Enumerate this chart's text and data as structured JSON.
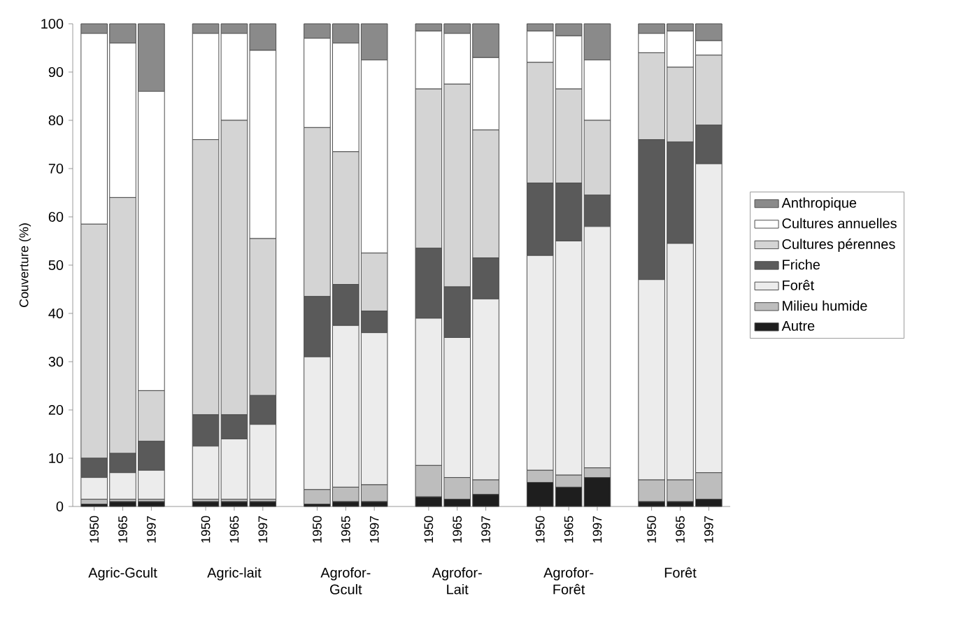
{
  "chart_data": {
    "type": "bar",
    "stacked": true,
    "ylabel": "Couverture (%)",
    "categories": [
      "1950",
      "1965",
      "1997",
      "1950",
      "1965",
      "1997",
      "1950",
      "1965",
      "1997",
      "1950",
      "1965",
      "1997",
      "1950",
      "1965",
      "1997",
      "1950",
      "1965",
      "1997"
    ],
    "annotations": [
      "Agric-Gcult",
      "Agric-lait",
      "Agrofor-Gcult",
      "Agrofor-Lait",
      "Agrofor-Forêt",
      "Forêt"
    ],
    "series": [
      {
        "name": "Autre",
        "color": "#1e1e1e",
        "values": [
          0.5,
          1,
          1,
          1,
          1,
          1,
          0.5,
          1,
          1,
          2,
          1.5,
          2.5,
          5,
          4,
          6,
          1,
          1,
          1.5
        ]
      },
      {
        "name": "Milieu humide",
        "color": "#bdbdbd",
        "values": [
          1,
          0.5,
          0.5,
          0.5,
          0.5,
          0.5,
          3,
          3,
          3.5,
          6.5,
          4.5,
          3,
          2.5,
          2.5,
          2,
          4.5,
          4.5,
          5.5
        ]
      },
      {
        "name": "Forêt",
        "color": "#ececec",
        "values": [
          4.5,
          5.5,
          6,
          11,
          12.5,
          15.5,
          27.5,
          33.5,
          31.5,
          30.5,
          29,
          37.5,
          44.5,
          48.5,
          50,
          41.5,
          49,
          64
        ]
      },
      {
        "name": "Friche",
        "color": "#5a5a5a",
        "values": [
          4,
          4,
          6,
          6.5,
          5,
          6,
          12.5,
          8.5,
          4.5,
          14.5,
          10.5,
          8.5,
          15,
          12,
          6.5,
          29,
          21,
          8
        ]
      },
      {
        "name": "Cultures pérennes",
        "color": "#d4d4d4",
        "values": [
          48.5,
          53,
          10.5,
          57,
          61,
          32.5,
          35,
          27.5,
          12,
          33,
          42,
          26.5,
          25,
          19.5,
          15.5,
          18,
          15.5,
          14.5
        ]
      },
      {
        "name": "Cultures annuelles",
        "color": "#ffffff",
        "values": [
          39.5,
          32,
          62,
          22,
          18,
          39,
          18.5,
          22.5,
          40,
          12,
          10.5,
          15,
          6.5,
          11,
          12.5,
          4,
          7.5,
          3
        ]
      },
      {
        "name": "Anthropique",
        "color": "#8a8a8a",
        "values": [
          2,
          4,
          14,
          2,
          2,
          5.5,
          3,
          4,
          7.5,
          1.5,
          2,
          7,
          1.5,
          2.5,
          7.5,
          2,
          1.5,
          3.5
        ]
      }
    ],
    "ylim": [
      0,
      100
    ],
    "yticks": [
      0,
      10,
      20,
      30,
      40,
      50,
      60,
      70,
      80,
      90,
      100
    ],
    "grid": false,
    "legend": "right"
  }
}
